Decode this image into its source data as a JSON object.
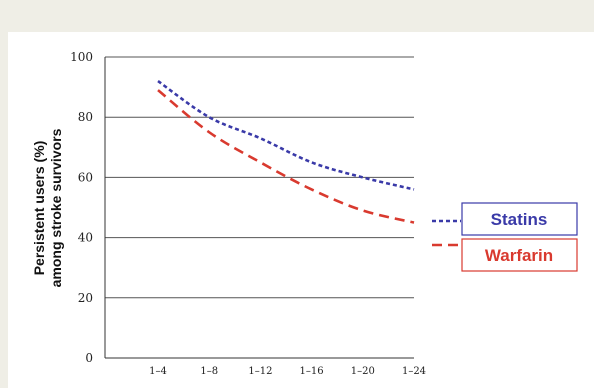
{
  "chart_data": {
    "type": "line",
    "title": "",
    "xlabel": "",
    "ylabel": "Persistent users (%) among stroke survivors",
    "ylabel_lines": [
      "Persistent users (%)",
      "among stroke survivors"
    ],
    "categories": [
      "1–4",
      "1–8",
      "1–12",
      "1–16",
      "1–20",
      "1–24"
    ],
    "x_tick_labels": [
      "1–4",
      "1–8",
      "1–12",
      "1–16",
      "1–20",
      "1–24"
    ],
    "y_tick_labels": [
      "0",
      "20",
      "40",
      "60",
      "80",
      "100"
    ],
    "y_ticks": [
      0,
      20,
      40,
      60,
      80,
      100
    ],
    "ylim": [
      0,
      100
    ],
    "grid": true,
    "legend_position": "right",
    "series": [
      {
        "name": "Statins",
        "color": "#3a3aa8",
        "style": "dotted",
        "values": [
          92,
          80,
          73,
          65,
          60,
          56
        ]
      },
      {
        "name": "Warfarin",
        "color": "#d93a2f",
        "style": "dashed",
        "values": [
          89,
          75,
          65,
          56,
          49,
          45
        ]
      }
    ]
  }
}
